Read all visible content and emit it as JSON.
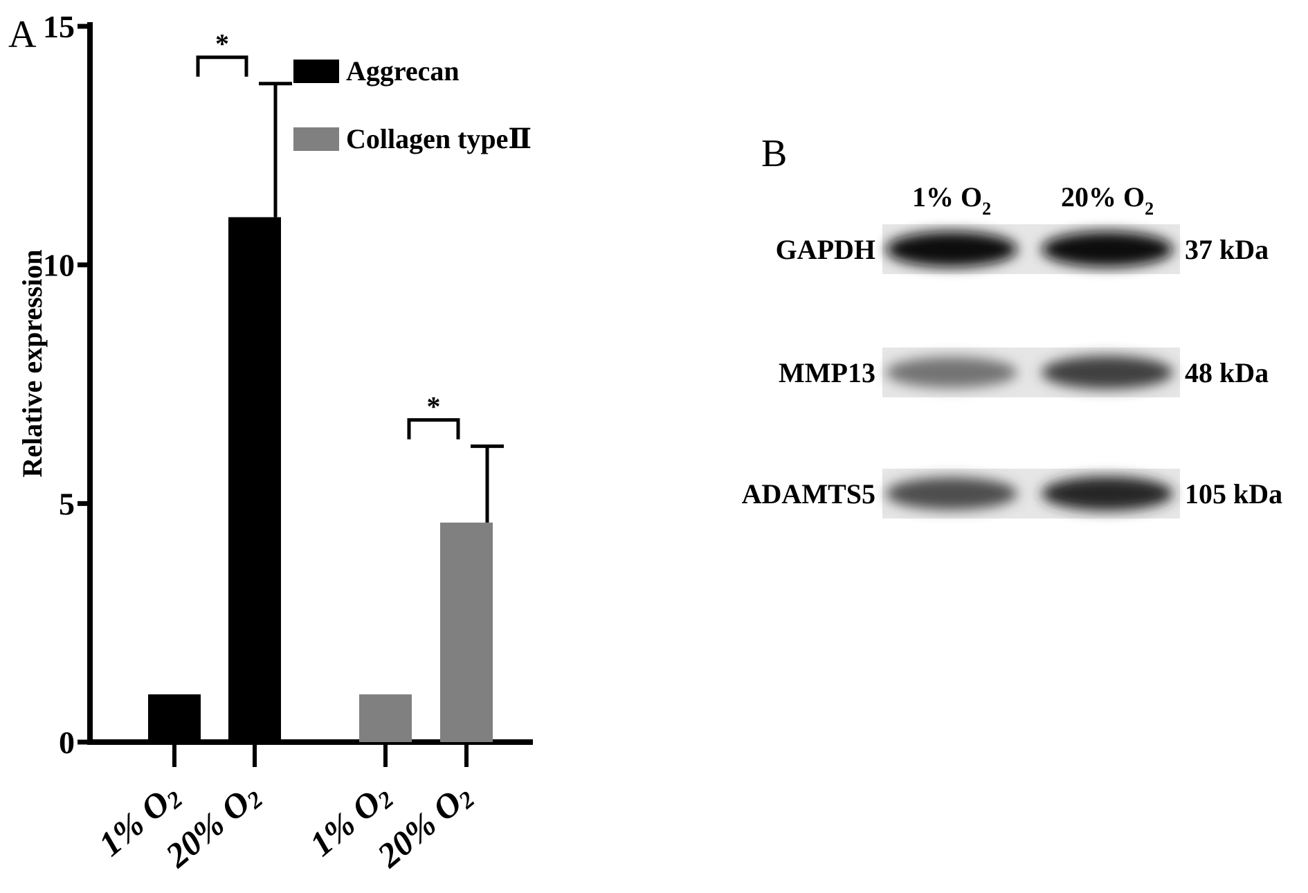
{
  "panel_a": {
    "letter": "A"
  },
  "panel_b": {
    "letter": "B",
    "lanes": [
      {
        "label_main": "1% O",
        "label_sub": "2"
      },
      {
        "label_main": "20% O",
        "label_sub": "2"
      }
    ],
    "rows": [
      {
        "protein": "GAPDH",
        "size": "37 kDa",
        "intensity": [
          0.95,
          0.95
        ]
      },
      {
        "protein": "MMP13",
        "size": "48 kDa",
        "intensity": [
          0.55,
          0.75
        ]
      },
      {
        "protein": "ADAMTS5",
        "size": "105 kDa",
        "intensity": [
          0.7,
          0.85
        ]
      }
    ]
  },
  "chart_data": {
    "type": "bar",
    "ylabel": "Relative expression",
    "ylim": [
      0,
      15
    ],
    "yticks": [
      "0",
      "5",
      "10",
      "15"
    ],
    "grid": false,
    "legend_position": "top-right",
    "groups": [
      {
        "series_name": "Aggrecan",
        "color": "#000000",
        "bars": [
          {
            "category_main": "1% O",
            "category_sub": "2",
            "value": 1.0,
            "error": 0
          },
          {
            "category_main": "20% O",
            "category_sub": "2",
            "value": 11.0,
            "error": 2.8
          }
        ],
        "significance": "*"
      },
      {
        "series_name": "Collagen typeⅡ",
        "color": "#808080",
        "bars": [
          {
            "category_main": "1% O",
            "category_sub": "2",
            "value": 1.0,
            "error": 0
          },
          {
            "category_main": "20% O",
            "category_sub": "2",
            "value": 4.6,
            "error": 1.6
          }
        ],
        "significance": "*"
      }
    ]
  }
}
